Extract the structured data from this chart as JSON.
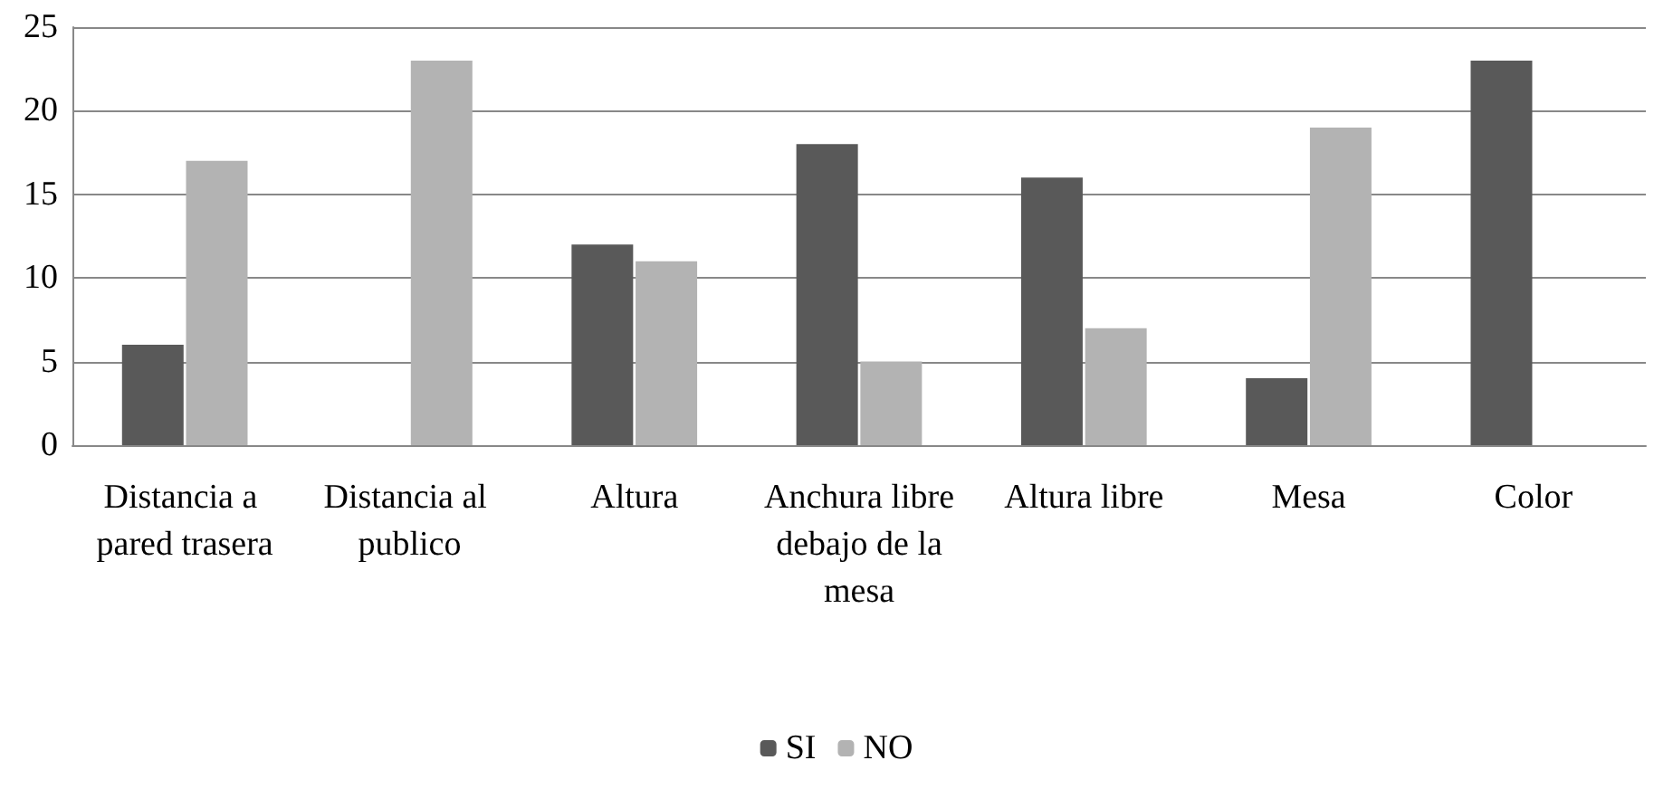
{
  "chart_data": {
    "type": "bar",
    "categories": [
      "Distancia a pared trasera",
      "Distancia al publico",
      "Altura",
      "Anchura libre debajo de la mesa",
      "Altura libre",
      "Mesa",
      "Color"
    ],
    "series": [
      {
        "name": "SI",
        "color": "#595959",
        "values": [
          6,
          0,
          12,
          18,
          16,
          4,
          23
        ]
      },
      {
        "name": "NO",
        "color": "#b3b3b3",
        "values": [
          17,
          23,
          11,
          5,
          7,
          19,
          0
        ]
      }
    ],
    "ylim": [
      0,
      25
    ],
    "yticks": [
      0,
      5,
      10,
      15,
      20,
      25
    ],
    "grid": "y",
    "legend": "bottom"
  }
}
